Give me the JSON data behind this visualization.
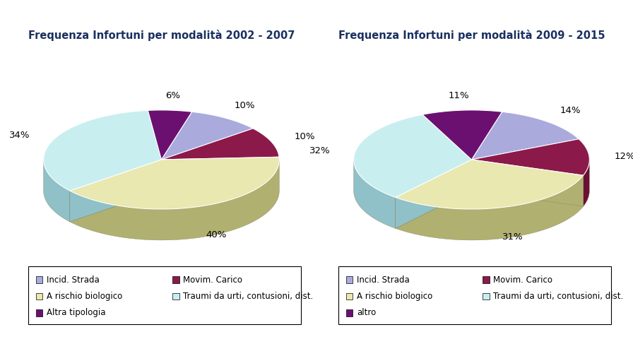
{
  "chart1": {
    "title": "Frequenza Infortuni per modalità 2002 - 2007",
    "values": [
      10,
      10,
      40,
      34,
      6
    ],
    "labels": [
      "10%",
      "10%",
      "40%",
      "34%",
      "6%"
    ],
    "colors": [
      "#AAAADD",
      "#8B1A4A",
      "#E8E8B0",
      "#C8EEF0",
      "#6B1070"
    ],
    "side_colors": [
      "#8888BB",
      "#6B1034",
      "#B0B070",
      "#90C0C8",
      "#4B0050"
    ],
    "legend_labels": [
      "Incid. Strada",
      "Movim. Carico",
      "A rischio biologico",
      "Traumi da urti, contusioni, dist.",
      "Altra tipologia"
    ]
  },
  "chart2": {
    "title": "Frequenza Infortuni per modalità 2009 - 2015",
    "values": [
      14,
      12,
      31,
      32,
      11
    ],
    "labels": [
      "14%",
      "12%",
      "31%",
      "32%",
      "11%"
    ],
    "colors": [
      "#AAAADD",
      "#8B1A4A",
      "#E8E8B0",
      "#C8EEF0",
      "#6B1070"
    ],
    "side_colors": [
      "#8888BB",
      "#6B1034",
      "#B0B070",
      "#90C0C8",
      "#4B0050"
    ],
    "legend_labels": [
      "Incid. Strada",
      "Movim. Carico",
      "A rischio biologico",
      "Traumi da urti, contusioni, dist.",
      "altro"
    ]
  },
  "background_color": "#FFFFFF",
  "title_fontsize": 10.5,
  "label_fontsize": 9.5,
  "legend_fontsize": 8.5
}
